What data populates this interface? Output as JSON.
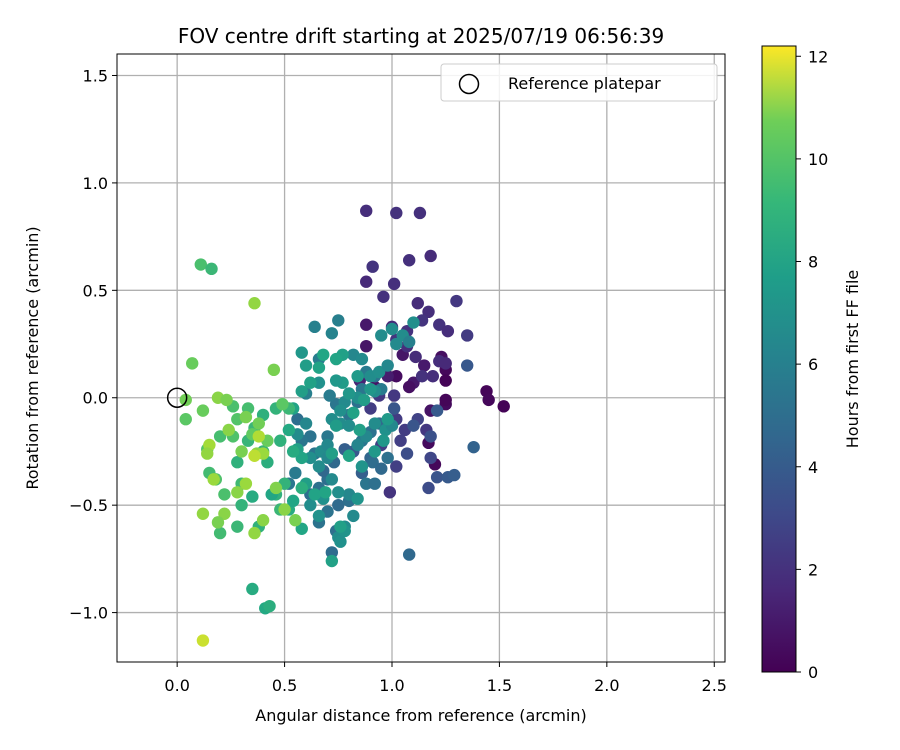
{
  "chart_data": {
    "type": "scatter",
    "title": "FOV centre drift starting at 2025/07/19 06:56:39",
    "xlabel": "Angular distance from reference (arcmin)",
    "ylabel": "Rotation from reference (arcmin)",
    "xlim": [
      -0.28,
      2.55
    ],
    "ylim": [
      -1.23,
      1.6
    ],
    "xticks": [
      0.0,
      0.5,
      1.0,
      1.5,
      2.0,
      2.5
    ],
    "xtick_labels": [
      "0.0",
      "0.5",
      "1.0",
      "1.5",
      "2.0",
      "2.5"
    ],
    "yticks": [
      -1.0,
      -0.5,
      0.0,
      0.5,
      1.0,
      1.5
    ],
    "ytick_labels": [
      "−1.0",
      "−0.5",
      "0.0",
      "0.5",
      "1.0",
      "1.5"
    ],
    "grid": true,
    "colormap": "viridis",
    "colorbar": {
      "label": "Hours from first FF file",
      "min": 0,
      "max": 12.2,
      "ticks": [
        0,
        2,
        4,
        6,
        8,
        10,
        12
      ],
      "tick_labels": [
        "0",
        "2",
        "4",
        "6",
        "8",
        "10",
        "12"
      ]
    },
    "legend": {
      "location": "upper right",
      "entries": [
        {
          "label": "Reference platepar",
          "marker": "open-circle",
          "x": 0.0,
          "y": 0.0
        }
      ]
    },
    "points": [
      [
        1.44,
        0.03,
        0.2
      ],
      [
        1.45,
        -0.01,
        0.3
      ],
      [
        1.52,
        -0.04,
        0.1
      ],
      [
        1.25,
        -0.03,
        0.4
      ],
      [
        1.23,
        0.19,
        0.6
      ],
      [
        1.25,
        0.13,
        0.3
      ],
      [
        1.25,
        0.08,
        0.1
      ],
      [
        1.25,
        -0.01,
        0.2
      ],
      [
        1.2,
        -0.31,
        0.3
      ],
      [
        1.17,
        -0.21,
        0.4
      ],
      [
        1.18,
        -0.06,
        0.8
      ],
      [
        1.1,
        0.07,
        1.0
      ],
      [
        1.15,
        0.15,
        1.1
      ],
      [
        1.08,
        0.05,
        0.6
      ],
      [
        1.05,
        0.2,
        0.9
      ],
      [
        1.02,
        0.1,
        0.5
      ],
      [
        0.98,
        0.1,
        1.2
      ],
      [
        0.92,
        0.05,
        0.8
      ],
      [
        0.85,
        0.08,
        1.5
      ],
      [
        0.88,
        0.24,
        0.9
      ],
      [
        0.88,
        0.34,
        1.0
      ],
      [
        0.88,
        0.87,
        2.0
      ],
      [
        1.02,
        0.86,
        2.2
      ],
      [
        1.13,
        0.86,
        2.1
      ],
      [
        0.91,
        0.61,
        2.3
      ],
      [
        1.08,
        0.64,
        2.1
      ],
      [
        1.18,
        0.66,
        1.9
      ],
      [
        1.01,
        0.53,
        2.1
      ],
      [
        0.96,
        0.47,
        2.2
      ],
      [
        0.88,
        0.54,
        1.8
      ],
      [
        1.12,
        0.44,
        1.9
      ],
      [
        1.17,
        0.4,
        2.0
      ],
      [
        1.3,
        0.45,
        2.5
      ],
      [
        1.22,
        0.34,
        2.2
      ],
      [
        1.26,
        0.31,
        2.0
      ],
      [
        1.35,
        0.29,
        2.6
      ],
      [
        1.14,
        0.36,
        2.3
      ],
      [
        1.07,
        0.31,
        2.2
      ],
      [
        1.0,
        0.33,
        1.8
      ],
      [
        1.02,
        0.27,
        2.4
      ],
      [
        1.07,
        0.24,
        2.0
      ],
      [
        1.11,
        0.19,
        1.9
      ],
      [
        1.22,
        0.17,
        2.0
      ],
      [
        1.25,
        0.16,
        1.8
      ],
      [
        1.14,
        0.1,
        2.2
      ],
      [
        1.19,
        0.1,
        2.0
      ],
      [
        1.01,
        0.01,
        2.5
      ],
      [
        0.94,
        0.01,
        2.5
      ],
      [
        1.02,
        -0.1,
        2.6
      ],
      [
        1.06,
        -0.15,
        2.7
      ],
      [
        1.16,
        -0.15,
        2.5
      ],
      [
        0.9,
        -0.05,
        2.7
      ],
      [
        0.95,
        -0.22,
        2.8
      ],
      [
        1.04,
        -0.2,
        2.8
      ],
      [
        1.12,
        -0.1,
        3.0
      ],
      [
        1.18,
        -0.28,
        3.2
      ],
      [
        1.02,
        -0.32,
        2.8
      ],
      [
        0.99,
        -0.44,
        2.3
      ],
      [
        1.17,
        -0.42,
        3.5
      ],
      [
        1.07,
        -0.26,
        3.6
      ],
      [
        1.21,
        -0.37,
        4.0
      ],
      [
        1.26,
        -0.37,
        4.3
      ],
      [
        1.29,
        -0.36,
        4.5
      ],
      [
        1.38,
        -0.23,
        4.8
      ],
      [
        1.35,
        0.15,
        4.2
      ],
      [
        1.21,
        -0.06,
        4.3
      ],
      [
        1.18,
        -0.18,
        3.8
      ],
      [
        1.1,
        -0.13,
        4.0
      ],
      [
        1.01,
        -0.05,
        4.1
      ],
      [
        0.96,
        -0.2,
        4.6
      ],
      [
        0.9,
        -0.28,
        5.0
      ],
      [
        0.86,
        -0.35,
        4.6
      ],
      [
        0.82,
        -0.25,
        4.2
      ],
      [
        0.78,
        -0.24,
        4.6
      ],
      [
        0.73,
        -0.3,
        5.2
      ],
      [
        0.7,
        -0.38,
        5.5
      ],
      [
        0.68,
        -0.34,
        5.1
      ],
      [
        0.66,
        -0.42,
        5.7
      ],
      [
        0.62,
        -0.45,
        5.4
      ],
      [
        0.7,
        -0.53,
        5.8
      ],
      [
        0.75,
        -0.5,
        5.3
      ],
      [
        0.8,
        -0.48,
        5.6
      ],
      [
        0.88,
        -0.4,
        5.9
      ],
      [
        0.91,
        -0.3,
        5.4
      ],
      [
        0.95,
        -0.33,
        5.2
      ],
      [
        0.98,
        -0.28,
        5.7
      ],
      [
        0.94,
        -0.12,
        5.3
      ],
      [
        0.9,
        -0.16,
        5.8
      ],
      [
        0.86,
        -0.2,
        6.0
      ],
      [
        0.8,
        -0.08,
        5.8
      ],
      [
        0.84,
        -0.02,
        5.6
      ],
      [
        0.86,
        0.04,
        6.0
      ],
      [
        0.88,
        0.12,
        6.2
      ],
      [
        0.92,
        0.1,
        5.8
      ],
      [
        0.95,
        0.04,
        6.3
      ],
      [
        0.92,
        -0.4,
        5.6
      ],
      [
        0.74,
        -0.62,
        5.6
      ],
      [
        0.72,
        -0.72,
        5.4
      ],
      [
        0.66,
        -0.58,
        5.8
      ],
      [
        0.56,
        -0.1,
        5.5
      ],
      [
        0.62,
        -0.18,
        5.8
      ],
      [
        0.64,
        -0.26,
        5.9
      ],
      [
        0.7,
        -0.18,
        6.1
      ],
      [
        0.74,
        -0.03,
        6.0
      ],
      [
        0.71,
        0.01,
        6.3
      ],
      [
        1.08,
        -0.73,
        5.2
      ],
      [
        0.55,
        -0.35,
        6.2
      ],
      [
        0.58,
        -0.2,
        6.0
      ],
      [
        0.52,
        -0.4,
        6.0
      ],
      [
        0.6,
        0.02,
        6.5
      ],
      [
        0.66,
        0.18,
        6.4
      ],
      [
        0.64,
        0.33,
        6.6
      ],
      [
        0.72,
        0.3,
        6.8
      ],
      [
        0.75,
        0.36,
        6.5
      ],
      [
        0.82,
        0.2,
        7.0
      ],
      [
        0.86,
        0.18,
        7.2
      ],
      [
        0.9,
        0.1,
        7.4
      ],
      [
        0.94,
        0.12,
        7.5
      ],
      [
        0.98,
        0.15,
        7.0
      ],
      [
        1.02,
        0.25,
        7.2
      ],
      [
        1.0,
        0.32,
        7.3
      ],
      [
        1.05,
        0.29,
        7.3
      ],
      [
        1.08,
        0.26,
        6.6
      ],
      [
        1.1,
        0.35,
        7.5
      ],
      [
        0.95,
        0.29,
        7.3
      ],
      [
        0.92,
        0.03,
        7.3
      ],
      [
        0.84,
        0.0,
        7.5
      ],
      [
        0.78,
        -0.02,
        7.2
      ],
      [
        0.76,
        -0.12,
        7.3
      ],
      [
        0.8,
        -0.13,
        7.4
      ],
      [
        0.84,
        -0.22,
        6.9
      ],
      [
        0.88,
        -0.18,
        7.0
      ],
      [
        0.92,
        -0.12,
        7.3
      ],
      [
        0.97,
        -0.15,
        7.6
      ],
      [
        1.0,
        -0.13,
        7.1
      ],
      [
        0.82,
        -0.55,
        7.2
      ],
      [
        0.78,
        -0.6,
        7.3
      ],
      [
        0.8,
        -0.45,
        7.0
      ],
      [
        0.75,
        -0.44,
        7.5
      ],
      [
        0.72,
        -0.38,
        7.2
      ],
      [
        0.67,
        -0.25,
        7.3
      ],
      [
        0.7,
        -0.22,
        7.1
      ],
      [
        0.72,
        -0.1,
        7.4
      ],
      [
        0.76,
        -0.06,
        7.5
      ],
      [
        0.66,
        0.07,
        7.6
      ],
      [
        0.6,
        -0.12,
        7.0
      ],
      [
        0.56,
        -0.17,
        7.3
      ],
      [
        0.62,
        -0.28,
        7.5
      ],
      [
        0.66,
        -0.32,
        7.3
      ],
      [
        0.7,
        -0.28,
        7.0
      ],
      [
        0.62,
        -0.5,
        7.4
      ],
      [
        0.68,
        -0.47,
        7.6
      ],
      [
        0.66,
        -0.55,
        7.7
      ],
      [
        0.75,
        -0.65,
        7.4
      ],
      [
        0.78,
        -0.62,
        7.8
      ],
      [
        0.76,
        -0.67,
        7.6
      ],
      [
        0.84,
        -0.47,
        7.8
      ],
      [
        0.86,
        -0.32,
        7.8
      ],
      [
        0.92,
        -0.25,
        8.1
      ],
      [
        0.96,
        -0.2,
        8.0
      ],
      [
        0.98,
        -0.1,
        8.2
      ],
      [
        0.9,
        0.04,
        8.0
      ],
      [
        0.84,
        0.1,
        8.2
      ],
      [
        0.8,
        0.02,
        8.0
      ],
      [
        0.77,
        0.07,
        8.3
      ],
      [
        0.74,
        0.08,
        8.1
      ],
      [
        0.74,
        -0.13,
        8.3
      ],
      [
        0.58,
        0.21,
        8.0
      ],
      [
        0.6,
        0.15,
        8.4
      ],
      [
        0.66,
        0.14,
        8.8
      ],
      [
        0.68,
        0.2,
        9.0
      ],
      [
        0.77,
        0.2,
        8.6
      ],
      [
        0.74,
        0.18,
        8.9
      ],
      [
        0.87,
        -0.01,
        8.4
      ],
      [
        0.82,
        -0.07,
        8.7
      ],
      [
        0.85,
        -0.15,
        8.6
      ],
      [
        0.8,
        -0.27,
        8.9
      ],
      [
        0.72,
        -0.26,
        8.5
      ],
      [
        0.62,
        0.07,
        8.7
      ],
      [
        0.58,
        0.03,
        8.5
      ],
      [
        0.54,
        -0.05,
        8.8
      ],
      [
        0.56,
        -0.24,
        8.6
      ],
      [
        0.58,
        -0.28,
        8.9
      ],
      [
        0.6,
        -0.4,
        8.5
      ],
      [
        0.64,
        -0.45,
        8.8
      ],
      [
        0.69,
        -0.44,
        8.9
      ],
      [
        0.72,
        -0.76,
        8.7
      ],
      [
        0.76,
        -0.6,
        8.6
      ],
      [
        0.58,
        -0.61,
        9.0
      ],
      [
        0.52,
        -0.52,
        9.3
      ],
      [
        0.54,
        -0.48,
        9.0
      ],
      [
        0.58,
        -0.42,
        9.4
      ],
      [
        0.5,
        -0.4,
        9.6
      ],
      [
        0.48,
        -0.2,
        9.5
      ],
      [
        0.52,
        -0.15,
        9.2
      ],
      [
        0.54,
        -0.25,
        9.3
      ],
      [
        0.48,
        -0.52,
        9.8
      ],
      [
        0.46,
        -0.45,
        9.5
      ],
      [
        0.42,
        -0.3,
        9.4
      ],
      [
        0.4,
        -0.25,
        9.7
      ],
      [
        0.35,
        -0.46,
        9.3
      ],
      [
        0.38,
        -0.6,
        9.5
      ],
      [
        0.3,
        -0.5,
        9.6
      ],
      [
        0.28,
        -0.6,
        9.8
      ],
      [
        0.3,
        -0.4,
        9.9
      ],
      [
        0.28,
        -0.3,
        9.5
      ],
      [
        0.33,
        -0.2,
        9.7
      ],
      [
        0.36,
        -0.14,
        9.8
      ],
      [
        0.4,
        -0.08,
        9.5
      ],
      [
        0.46,
        -0.05,
        9.6
      ],
      [
        0.52,
        -0.05,
        9.8
      ],
      [
        0.44,
        -0.45,
        9.0
      ],
      [
        0.35,
        -0.89,
        9.3
      ],
      [
        0.41,
        -0.98,
        9.2
      ],
      [
        0.43,
        -0.97,
        9.4
      ],
      [
        0.2,
        -0.63,
        10.0
      ],
      [
        0.22,
        -0.45,
        10.2
      ],
      [
        0.18,
        -0.38,
        10.3
      ],
      [
        0.15,
        -0.35,
        10.0
      ],
      [
        0.14,
        -0.24,
        10.4
      ],
      [
        0.2,
        -0.18,
        10.1
      ],
      [
        0.26,
        -0.18,
        10.3
      ],
      [
        0.28,
        -0.1,
        10.4
      ],
      [
        0.26,
        -0.04,
        10.2
      ],
      [
        0.33,
        -0.05,
        10.1
      ],
      [
        0.11,
        0.62,
        10.2
      ],
      [
        0.16,
        0.6,
        9.8
      ],
      [
        0.07,
        0.16,
        10.8
      ],
      [
        0.04,
        -0.01,
        10.9
      ],
      [
        0.04,
        -0.1,
        10.6
      ],
      [
        0.12,
        -0.06,
        10.8
      ],
      [
        0.19,
        0.0,
        11.2
      ],
      [
        0.23,
        -0.01,
        11.0
      ],
      [
        0.36,
        0.44,
        11.3
      ],
      [
        0.45,
        0.13,
        11.0
      ],
      [
        0.49,
        -0.03,
        10.6
      ],
      [
        0.38,
        -0.12,
        10.9
      ],
      [
        0.42,
        -0.2,
        10.8
      ],
      [
        0.37,
        -0.26,
        11.2
      ],
      [
        0.4,
        -0.26,
        11.4
      ],
      [
        0.32,
        -0.09,
        11.0
      ],
      [
        0.35,
        -0.17,
        10.7
      ],
      [
        0.3,
        -0.25,
        11.0
      ],
      [
        0.24,
        -0.15,
        11.2
      ],
      [
        0.22,
        -0.54,
        11.2
      ],
      [
        0.32,
        -0.4,
        11.4
      ],
      [
        0.28,
        -0.44,
        11.2
      ],
      [
        0.12,
        -0.54,
        11.3
      ],
      [
        0.19,
        -0.58,
        11.0
      ],
      [
        0.36,
        -0.63,
        11.3
      ],
      [
        0.4,
        -0.57,
        11.2
      ],
      [
        0.46,
        -0.42,
        11.1
      ],
      [
        0.5,
        -0.52,
        11.2
      ],
      [
        0.55,
        -0.57,
        11.0
      ],
      [
        0.15,
        -0.22,
        11.5
      ],
      [
        0.14,
        -0.26,
        11.3
      ],
      [
        0.17,
        -0.38,
        11.4
      ],
      [
        0.12,
        -1.13,
        11.8
      ],
      [
        0.36,
        -0.27,
        11.7
      ],
      [
        0.38,
        -0.18,
        11.6
      ]
    ]
  }
}
